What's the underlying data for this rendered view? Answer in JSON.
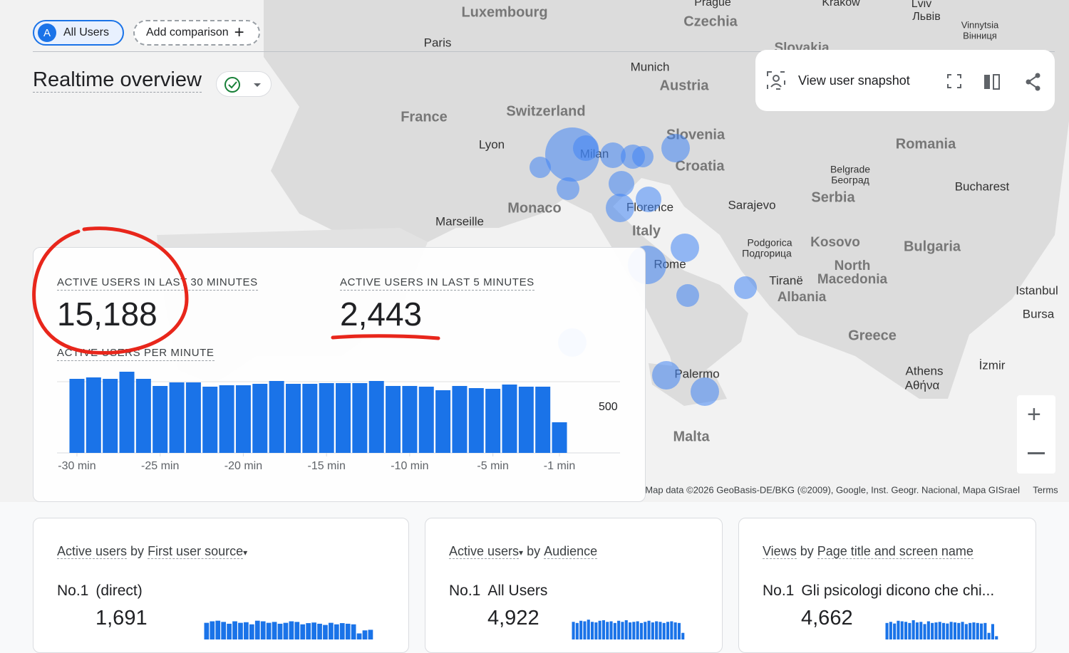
{
  "header": {
    "segment_badge": "A",
    "segment": "All Users",
    "add_comparison": "Add comparison",
    "title": "Realtime overview"
  },
  "toolbar": {
    "snapshot": "View user snapshot"
  },
  "map": {
    "labels": [
      "Luxembourg",
      "Prague",
      "Czechia",
      "Krakow",
      "Lviv",
      "Львів",
      "Vinnytsia",
      "Вінниця",
      "Paris",
      "Slovakia",
      "Munich",
      "Austria",
      "France",
      "Switzerland",
      "Lyon",
      "Milan",
      "Slovenia",
      "Croatia",
      "Romania",
      "Belgrade",
      "Београд",
      "Serbia",
      "Bucharest",
      "Sarajevo",
      "Monaco",
      "Florence",
      "Marseille",
      "Italy",
      "Podgorica",
      "Подгорица",
      "Kosovo",
      "Bulgaria",
      "North",
      "Macedonia",
      "Rome",
      "Tiranë",
      "Albania",
      "Istanbul",
      "Bursa",
      "Greece",
      "İzmir",
      "Athens",
      "Αθήνα",
      "Palermo",
      "Malta"
    ],
    "attribution": "Map data ©2026 GeoBasis-DE/BKG (©2009), Google, Inst. Geogr. Nacional, Mapa GISrael",
    "terms": "Terms"
  },
  "summary": {
    "metric_30": {
      "label": "ACTIVE USERS IN LAST 30 MINUTES",
      "value": "15,188"
    },
    "metric_5": {
      "label": "ACTIVE USERS IN LAST 5 MINUTES",
      "value": "2,443"
    },
    "chart_data": {
      "type": "bar",
      "title": "ACTIVE USERS PER MINUTE",
      "color": "#1a73e8",
      "x": [
        -30,
        -29,
        -28,
        -27,
        -26,
        -25,
        -24,
        -23,
        -22,
        -21,
        -20,
        -19,
        -18,
        -17,
        -16,
        -15,
        -14,
        -13,
        -12,
        -11,
        -10,
        -9,
        -8,
        -7,
        -6,
        -5,
        -4,
        -3,
        -2,
        -1
      ],
      "values": [
        520,
        530,
        520,
        570,
        520,
        470,
        495,
        495,
        465,
        475,
        475,
        485,
        505,
        485,
        485,
        490,
        490,
        490,
        505,
        470,
        470,
        465,
        440,
        470,
        455,
        450,
        480,
        465,
        465,
        215
      ],
      "xlim": [
        -30.5,
        -0.5
      ],
      "xticks": [
        {
          "value": -30,
          "label": "-30 min"
        },
        {
          "value": -25,
          "label": "-25 min"
        },
        {
          "value": -20,
          "label": "-20 min"
        },
        {
          "value": -15,
          "label": "-15 min"
        },
        {
          "value": -10,
          "label": "-10 min"
        },
        {
          "value": -5,
          "label": "-5 min"
        },
        {
          "value": -1,
          "label": "-1 min"
        }
      ],
      "ylim": [
        0,
        600
      ],
      "yticks": [
        500
      ],
      "grid": true
    }
  },
  "cards": [
    {
      "metric": "Active users",
      "by": "by",
      "dimension": "First user source",
      "rank": "No.1",
      "top": "(direct)",
      "value": "1,691",
      "chart_data": {
        "type": "bar",
        "color": "#1a73e8",
        "ylim": [
          0,
          80
        ],
        "values": [
          55,
          60,
          62,
          58,
          52,
          60,
          55,
          57,
          50,
          62,
          60,
          55,
          58,
          52,
          55,
          60,
          58,
          50,
          54,
          56,
          52,
          48,
          55,
          50,
          54,
          52,
          50,
          20,
          30,
          32
        ]
      }
    },
    {
      "metric": "Active users",
      "by": "by",
      "dimension": "Audience",
      "rank": "No.1",
      "top": "All Users",
      "value": "4,922",
      "chart_data": {
        "type": "bar",
        "color": "#1a73e8",
        "ylim": [
          0,
          220
        ],
        "values": [
          160,
          150,
          170,
          165,
          180,
          160,
          155,
          170,
          175,
          160,
          165,
          150,
          170,
          160,
          175,
          155,
          160,
          165,
          150,
          160,
          170,
          155,
          165,
          160,
          150,
          160,
          165,
          155,
          150,
          60
        ]
      }
    },
    {
      "metric": "Views",
      "by": "by",
      "dimension": "Page title and screen name",
      "rank": "No.1",
      "top": "Gli psicologi dicono che chi...",
      "value": "4,662",
      "chart_data": {
        "type": "bar",
        "color": "#1a73e8",
        "ylim": [
          0,
          220
        ],
        "values": [
          150,
          160,
          145,
          170,
          165,
          160,
          150,
          175,
          155,
          160,
          140,
          165,
          150,
          155,
          160,
          150,
          145,
          160,
          155,
          150,
          160,
          140,
          150,
          155,
          150,
          145,
          150,
          60,
          140,
          30
        ]
      }
    }
  ]
}
